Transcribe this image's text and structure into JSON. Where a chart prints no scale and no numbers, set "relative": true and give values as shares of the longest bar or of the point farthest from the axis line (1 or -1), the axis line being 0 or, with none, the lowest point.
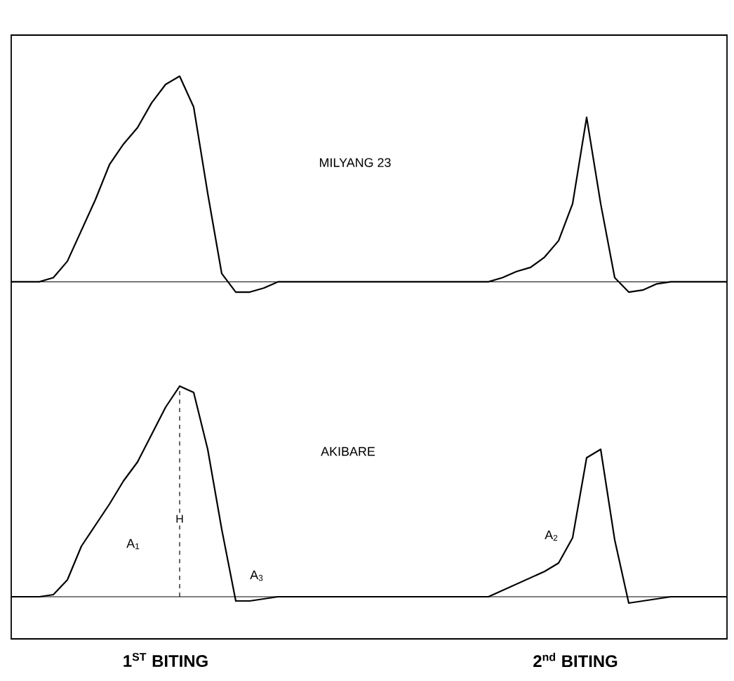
{
  "chart_data": [
    {
      "type": "line",
      "relative": true,
      "title": "MILYANG 23",
      "color": "#000000",
      "categories": [
        null,
        null,
        null,
        null,
        null,
        null,
        null,
        null,
        null,
        null,
        null,
        null,
        null,
        null,
        null,
        null,
        null,
        null,
        null,
        null,
        null,
        null,
        null,
        null,
        null,
        null,
        null,
        null,
        null,
        null,
        null,
        null,
        null,
        null,
        null,
        null,
        null,
        null,
        null,
        null,
        null,
        null,
        null,
        null,
        null,
        null,
        null,
        null,
        null,
        null,
        null,
        null
      ],
      "values": [
        0,
        0,
        0,
        0.02,
        0.1,
        0.25,
        0.4,
        0.57,
        0.67,
        0.75,
        0.87,
        0.96,
        1,
        0.85,
        0.43,
        0.04,
        -0.05,
        -0.05,
        -0.03,
        0,
        0,
        0,
        0,
        0,
        0,
        0,
        0,
        0,
        0,
        0,
        0,
        0,
        0,
        0,
        0,
        0.02,
        0.05,
        0.07,
        0.12,
        0.2,
        0.38,
        0.8,
        0.38,
        0.02,
        -0.05,
        -0.04,
        -0.01,
        0,
        0,
        0,
        0,
        0
      ]
    },
    {
      "type": "line",
      "relative": true,
      "title": "AKIBARE",
      "color": "#000000",
      "categories": [
        null,
        null,
        null,
        null,
        null,
        null,
        null,
        null,
        null,
        null,
        null,
        null,
        null,
        null,
        null,
        null,
        null,
        null,
        null,
        null,
        null,
        null,
        null,
        null,
        null,
        null,
        null,
        null,
        null,
        null,
        null,
        null,
        null,
        null,
        null,
        null,
        null,
        null,
        null,
        null,
        null,
        null,
        null,
        null,
        null,
        null,
        null,
        null,
        null,
        null,
        null,
        null
      ],
      "values": [
        0,
        0,
        0,
        0.01,
        0.08,
        0.24,
        0.34,
        0.44,
        0.55,
        0.64,
        0.77,
        0.9,
        1,
        0.97,
        0.7,
        0.32,
        -0.02,
        -0.02,
        -0.01,
        0,
        0,
        0,
        0,
        0,
        0,
        0,
        0,
        0,
        0,
        0,
        0,
        0,
        0,
        0,
        0,
        0.03,
        0.06,
        0.09,
        0.12,
        0.16,
        0.28,
        0.66,
        0.7,
        0.27,
        -0.03,
        -0.02,
        -0.01,
        0,
        0,
        0,
        0,
        0
      ],
      "annotations": [
        "A$_{1}$",
        "H",
        "A$_{3}$",
        "A$_{2}$",
        "1$^{ST}$ BITING",
        "2$^{nd}$ BITING"
      ]
    }
  ]
}
